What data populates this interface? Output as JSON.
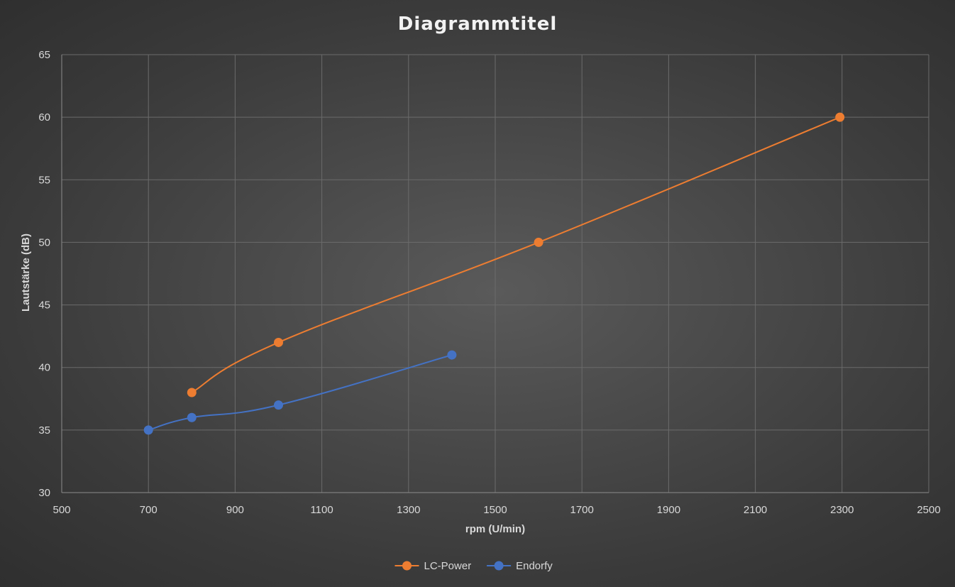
{
  "chart_data": {
    "type": "scatter",
    "title": "Diagrammtitel",
    "xlabel": "rpm (U/min)",
    "ylabel": "Lautstärke (dB)",
    "xlim": [
      500,
      2500
    ],
    "ylim": [
      30,
      65
    ],
    "xticks": [
      500,
      700,
      900,
      1100,
      1300,
      1500,
      1700,
      1900,
      2100,
      2300,
      2500
    ],
    "yticks": [
      30,
      35,
      40,
      45,
      50,
      55,
      60,
      65
    ],
    "grid": true,
    "smooth_lines": true,
    "legend_position": "bottom",
    "series": [
      {
        "name": "LC-Power",
        "color": "#ED7D31",
        "x": [
          800,
          1000,
          1600,
          2295
        ],
        "y": [
          38,
          42,
          50,
          60
        ]
      },
      {
        "name": "Endorfy",
        "color": "#4472C4",
        "x": [
          700,
          800,
          1000,
          1400
        ],
        "y": [
          35,
          36,
          37,
          41
        ]
      }
    ]
  }
}
